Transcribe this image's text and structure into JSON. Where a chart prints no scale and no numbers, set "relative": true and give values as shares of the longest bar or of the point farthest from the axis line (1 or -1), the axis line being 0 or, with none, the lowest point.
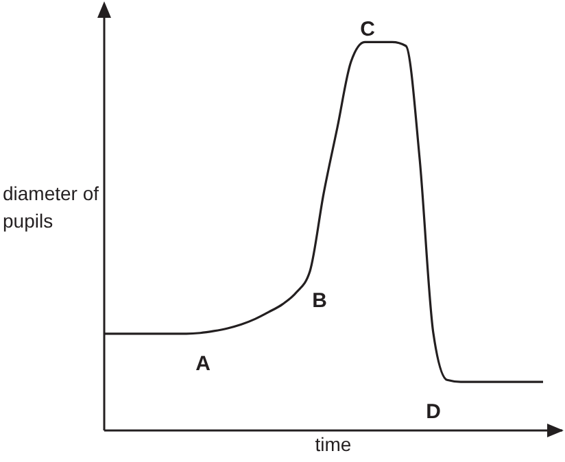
{
  "chart_data": {
    "type": "line",
    "relative": true,
    "xlabel": "time",
    "ylabel": "diameter of pupils",
    "categories": [
      null,
      null,
      null,
      null,
      null,
      null,
      null,
      null,
      null,
      null,
      null,
      null,
      null,
      null,
      null,
      null,
      null,
      null,
      null,
      null,
      null,
      null,
      null,
      null,
      null,
      null,
      null,
      null,
      null,
      null,
      null,
      null,
      null
    ],
    "series": [
      {
        "color": "#231f20",
        "values": [
          0.249,
          0.249,
          0.249,
          0.249,
          0.249,
          0.249,
          0.249,
          0.251,
          0.256,
          0.263,
          0.273,
          0.287,
          0.305,
          0.325,
          0.355,
          0.41,
          0.61,
          0.78,
          0.95,
          1.0,
          1.0,
          1.0,
          0.99,
          0.7,
          0.25,
          0.13,
          0.125,
          0.125,
          0.125,
          0.125,
          0.125,
          0.125,
          0.125
        ]
      }
    ],
    "annotations": [
      "A",
      "B",
      "C",
      "D"
    ],
    "grid": false,
    "legend": false,
    "marker": "none",
    "line_style": "solid"
  }
}
